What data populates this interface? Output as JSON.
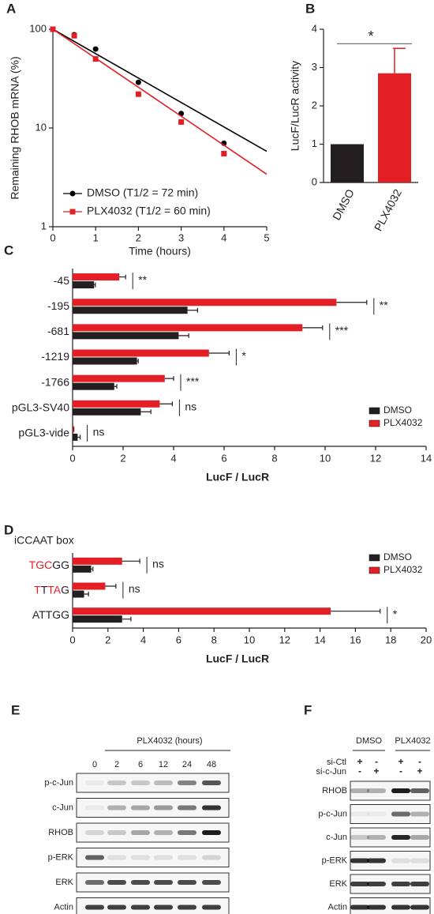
{
  "chart_data": [
    {
      "type": "line",
      "panel": "A",
      "x_label": "Time (hours)",
      "y_label": "Remaining RHOB mRNA (%)",
      "log_y": true,
      "xlim": [
        0,
        5
      ],
      "ylim": [
        1,
        100
      ],
      "xticks": [
        0,
        1,
        2,
        3,
        4,
        5
      ],
      "yticks": [
        1,
        10,
        100
      ],
      "legend": "lower left",
      "series": [
        {
          "name": "DMSO (T1/2 = 72 min)",
          "color": "#000000",
          "marker": "circle",
          "x": [
            0,
            0.5,
            1,
            2,
            3,
            4
          ],
          "values": [
            100,
            88,
            63,
            29,
            14,
            7
          ],
          "fit_x": [
            0,
            5
          ],
          "fit_values": [
            100,
            5.8
          ]
        },
        {
          "name": "PLX4032 (T1/2 = 60 min)",
          "color": "#e31e24",
          "marker": "square",
          "x": [
            0,
            0.5,
            1,
            2,
            3,
            4
          ],
          "values": [
            100,
            86,
            50,
            22,
            11.5,
            5.5
          ],
          "fit_x": [
            0,
            5
          ],
          "fit_values": [
            100,
            3.4
          ]
        }
      ]
    },
    {
      "type": "bar",
      "panel": "B",
      "y_label": "LucF/LucR activity",
      "categories": [
        "DMSO",
        "PLX4032"
      ],
      "values": [
        1.0,
        2.85
      ],
      "errors": [
        null,
        0.65
      ],
      "colors": [
        "#231f20",
        "#e31e24"
      ],
      "ylim": [
        0,
        4
      ],
      "yticks": [
        0,
        1,
        2,
        3,
        4
      ],
      "significance": "*"
    },
    {
      "type": "hbar",
      "panel": "C",
      "x_label": "LucF / LucR",
      "legend": "lower right",
      "categories": [
        "-45",
        "-195",
        "-681",
        "-1219",
        "-1766",
        "pGL3-SV40",
        "pGL3-vide"
      ],
      "series": [
        {
          "name": "DMSO",
          "color": "#231f20",
          "values": [
            0.85,
            4.55,
            4.2,
            2.55,
            1.65,
            2.7,
            0.2
          ],
          "errors": [
            0.05,
            0.4,
            0.4,
            0.05,
            0.1,
            0.4,
            0.1
          ]
        },
        {
          "name": "PLX4032",
          "color": "#e31e24",
          "values": [
            1.85,
            10.45,
            9.1,
            5.4,
            3.65,
            3.45,
            0.05
          ],
          "errors": [
            0.25,
            1.2,
            0.8,
            0.8,
            0.35,
            0.5,
            0
          ]
        }
      ],
      "significance": [
        "**",
        "**",
        "***",
        "*",
        "***",
        "ns",
        "ns"
      ],
      "xlim": [
        0,
        14
      ],
      "xticks": [
        0,
        2,
        4,
        6,
        8,
        10,
        12,
        14
      ]
    },
    {
      "type": "hbar",
      "panel": "D",
      "subtitle": "iCCAAT box",
      "x_label": "LucF / LucR",
      "legend": "upper right",
      "categories": [
        [
          {
            "text": "TGC",
            "color": "#e31e24"
          },
          {
            "text": "GG",
            "color": "#231f20"
          }
        ],
        [
          {
            "text": "T",
            "color": "#e31e24"
          },
          {
            "text": "T",
            "color": "#231f20"
          },
          {
            "text": "TA",
            "color": "#e31e24"
          },
          {
            "text": "G",
            "color": "#231f20"
          }
        ],
        [
          {
            "text": "ATTGG",
            "color": "#231f20"
          }
        ]
      ],
      "series": [
        {
          "name": "DMSO",
          "color": "#231f20",
          "values": [
            1.05,
            0.65,
            2.8
          ],
          "errors": [
            0.1,
            0.25,
            0.5
          ]
        },
        {
          "name": "PLX4032",
          "color": "#e31e24",
          "values": [
            2.8,
            1.85,
            14.6
          ],
          "errors": [
            1.0,
            0.6,
            2.8
          ]
        }
      ],
      "significance": [
        "ns",
        "ns",
        "*"
      ],
      "xlim": [
        0,
        20
      ],
      "xticks": [
        0,
        2,
        4,
        6,
        8,
        10,
        12,
        14,
        16,
        18,
        20
      ]
    }
  ],
  "blots": [
    {
      "panel": "E",
      "title": "PLX4032 (hours)",
      "lanes": [
        0,
        2,
        6,
        12,
        24,
        48
      ],
      "rows": [
        "p-c-Jun",
        "c-Jun",
        "RHOB",
        "p-ERK",
        "ERK",
        "Actin"
      ]
    },
    {
      "panel": "F",
      "groups": [
        "DMSO",
        "PLX4032"
      ],
      "conditions": [
        {
          "name": "si-Ctl",
          "signs": [
            "+",
            "-",
            "+",
            "-"
          ]
        },
        {
          "name": "si-c-Jun",
          "signs": [
            "-",
            "+",
            "-",
            "+"
          ]
        }
      ],
      "rows": [
        "RHOB",
        "p-c-Jun",
        "c-Jun",
        "p-ERK",
        "ERK",
        "Actin"
      ]
    }
  ]
}
